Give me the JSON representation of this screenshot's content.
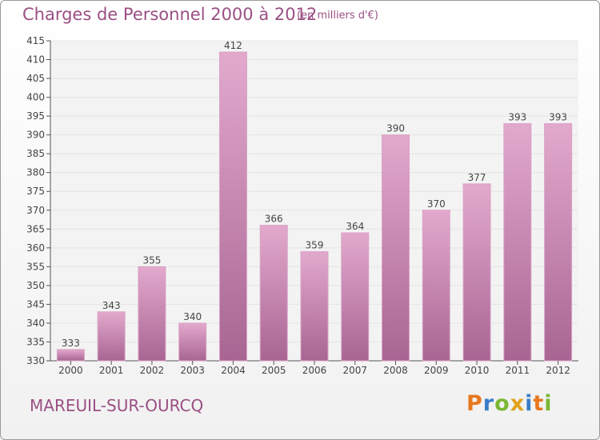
{
  "header": {
    "title": "Charges de Personnel 2000 à 2012",
    "subtitle": "(en milliers d'€)"
  },
  "footer": {
    "place": "MAREUIL-SUR-OURCQ",
    "logo_letters": [
      "P",
      "r",
      "o",
      "x",
      "i",
      "t",
      "i"
    ],
    "logo_colors": [
      "#e8781f",
      "#3a7dc8",
      "#7ab733",
      "#e2a21a",
      "#3a7dc8",
      "#e8781f",
      "#7ab733"
    ]
  },
  "colors": {
    "bar": "#c77fae",
    "bar_light": "#e3a9cd",
    "bar_dark": "#a86593",
    "axis_text": "#444444",
    "title": "#9a4f83"
  },
  "chart_data": {
    "type": "bar",
    "categories": [
      "2000",
      "2001",
      "2002",
      "2003",
      "2004",
      "2005",
      "2006",
      "2007",
      "2008",
      "2009",
      "2010",
      "2011",
      "2012"
    ],
    "values": [
      333,
      343,
      355,
      340,
      412,
      366,
      359,
      364,
      390,
      370,
      377,
      393,
      393
    ],
    "value_labels": [
      "333",
      "343",
      "355",
      "340",
      "412",
      "366",
      "359",
      "364",
      "390",
      "370",
      "377",
      "393",
      "393"
    ],
    "title": "Charges de Personnel 2000 à 2012",
    "xlabel": "",
    "ylabel": "",
    "ylim": [
      330,
      415
    ],
    "yticks": [
      330,
      335,
      340,
      345,
      350,
      355,
      360,
      365,
      370,
      375,
      380,
      385,
      390,
      395,
      400,
      405,
      410,
      415
    ],
    "grid": true
  }
}
